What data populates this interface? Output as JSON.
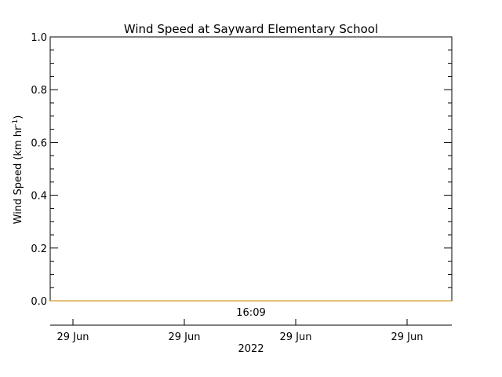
{
  "chart_data": {
    "type": "line",
    "title": "Wind Speed at Sayward Elementary School",
    "ylabel_main": "Wind Speed (km hr",
    "ylabel_sup": "-1",
    "ylabel_close": ")",
    "ylim": [
      0.0,
      1.0
    ],
    "y_ticks": [
      0.0,
      0.2,
      0.4,
      0.6,
      0.8,
      1.0
    ],
    "y_tick_labels": [
      "0.0",
      "0.2",
      "0.4",
      "0.6",
      "0.8",
      "1.0"
    ],
    "x_tick_labels": [
      "29 Jun",
      "29 Jun",
      "29 Jun",
      "29 Jun"
    ],
    "time_label": "16:09",
    "year_label": "2022",
    "series": [
      {
        "values": [
          0.0,
          0.0
        ],
        "color": "#d49a2a"
      }
    ]
  }
}
